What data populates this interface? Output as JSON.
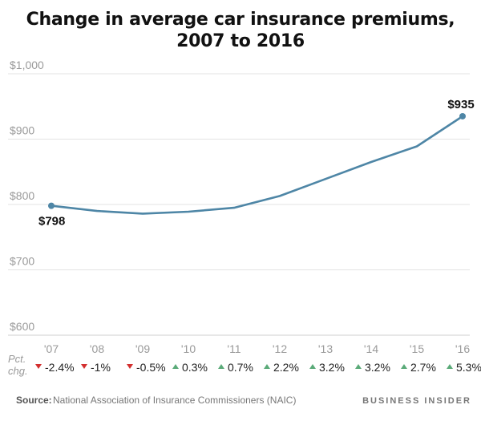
{
  "chart_data": {
    "type": "line",
    "title_lines": [
      "Change in average car insurance premiums,",
      "2007 to 2016"
    ],
    "categories": [
      "'07",
      "'08",
      "'09",
      "'10",
      "'11",
      "'12",
      "'13",
      "'14",
      "'15",
      "'16"
    ],
    "values": [
      798,
      790,
      786,
      789,
      795,
      813,
      839,
      865,
      889,
      935
    ],
    "ylim": [
      600,
      1000
    ],
    "yticks": [
      600,
      700,
      800,
      900,
      1000
    ],
    "ytick_labels": [
      "$600",
      "$700",
      "$800",
      "$900",
      "$1,000"
    ],
    "grid": true,
    "pct_change_label": [
      "Pct.",
      "chg."
    ],
    "pct_change": [
      {
        "direction": "down",
        "text": "-2.4%"
      },
      {
        "direction": "down",
        "text": "-1%"
      },
      {
        "direction": "down",
        "text": "-0.5%"
      },
      {
        "direction": "up",
        "text": "0.3%"
      },
      {
        "direction": "up",
        "text": "0.7%"
      },
      {
        "direction": "up",
        "text": "2.2%"
      },
      {
        "direction": "up",
        "text": "3.2%"
      },
      {
        "direction": "up",
        "text": "3.2%"
      },
      {
        "direction": "up",
        "text": "2.7%"
      },
      {
        "direction": "up",
        "text": "5.3%"
      }
    ],
    "annotations": [
      {
        "index": 0,
        "text": "$798"
      },
      {
        "index": 9,
        "text": "$935"
      }
    ],
    "source_prefix": "Source:",
    "source": "National Association of Insurance Commissioners (NAIC)",
    "brand": "BUSINESS INSIDER",
    "colors": {
      "line": "#4e86a6",
      "down": "#d32f2f",
      "up": "#5aaa78",
      "grid": "#e3e3e3"
    }
  }
}
